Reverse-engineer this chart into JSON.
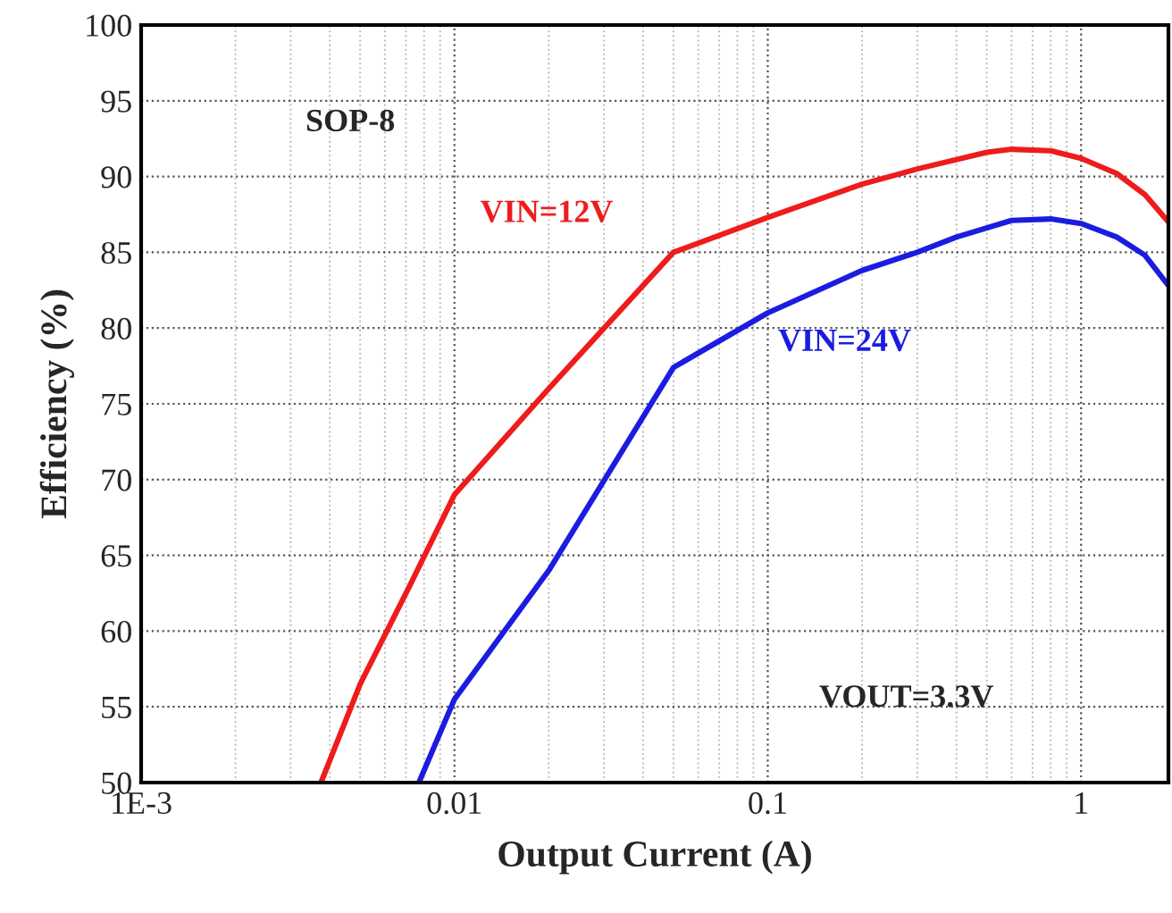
{
  "chart_data": {
    "type": "line",
    "xlabel": "Output Current (A)",
    "ylabel": "Efficiency (%)",
    "log": "x",
    "series": [
      {
        "name": "VIN=12V",
        "color": "#ee1c1c",
        "x": [
          0.00375,
          0.005,
          0.0072,
          0.01,
          0.02,
          0.05,
          0.1,
          0.2,
          0.3,
          0.5,
          0.6,
          0.8,
          1,
          1.3,
          1.6,
          1.9
        ],
        "values": [
          50,
          56.5,
          63,
          69,
          76,
          85,
          87.3,
          89.5,
          90.5,
          91.6,
          91.8,
          91.7,
          91.2,
          90.2,
          88.8,
          87
        ]
      },
      {
        "name": "VIN=24V",
        "color": "#1c1ce0",
        "x": [
          0.0077,
          0.01,
          0.02,
          0.05,
          0.1,
          0.2,
          0.3,
          0.4,
          0.6,
          0.8,
          1,
          1.3,
          1.6,
          1.9
        ],
        "values": [
          50,
          55.5,
          64,
          77.4,
          81,
          83.8,
          85,
          86,
          87.1,
          87.2,
          86.9,
          86,
          84.8,
          82.8
        ]
      }
    ],
    "xlim": [
      0.001,
      1.9
    ],
    "ylim": [
      50,
      100
    ],
    "xticks": [
      {
        "value": 0.001,
        "label": "1E-3"
      },
      0.01,
      0.1,
      1
    ],
    "yticks": [
      50,
      55,
      60,
      65,
      70,
      75,
      80,
      85,
      90,
      95,
      100
    ],
    "grid": true,
    "marker": "none",
    "line_style": "solid",
    "annotations": [
      "SOP-8",
      "VOUT=3.3V"
    ]
  }
}
